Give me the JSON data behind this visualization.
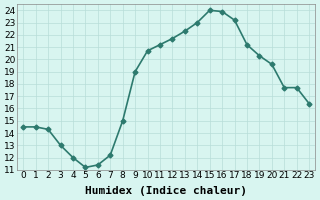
{
  "x": [
    0,
    1,
    2,
    3,
    4,
    5,
    6,
    7,
    8,
    9,
    10,
    11,
    12,
    13,
    14,
    15,
    16,
    17,
    18,
    19,
    20,
    21,
    22,
    23
  ],
  "y": [
    14.5,
    14.5,
    14.3,
    13.0,
    12.0,
    11.2,
    11.4,
    12.2,
    15.0,
    19.0,
    20.7,
    21.2,
    21.7,
    22.3,
    23.0,
    24.0,
    23.9,
    23.2,
    21.2,
    20.3,
    19.6,
    17.7,
    17.7,
    16.4
  ],
  "xlabel": "Humidex (Indice chaleur)",
  "xlim": [
    -0.5,
    23.5
  ],
  "ylim": [
    11,
    24.5
  ],
  "yticks": [
    11,
    12,
    13,
    14,
    15,
    16,
    17,
    18,
    19,
    20,
    21,
    22,
    23,
    24
  ],
  "xticks": [
    0,
    1,
    2,
    3,
    4,
    5,
    6,
    7,
    8,
    9,
    10,
    11,
    12,
    13,
    14,
    15,
    16,
    17,
    18,
    19,
    20,
    21,
    22,
    23
  ],
  "line_color": "#2d7a6e",
  "marker": "D",
  "marker_size": 2.5,
  "bg_color": "#d8f5f0",
  "grid_color": "#b8ddd8",
  "xlabel_fontsize": 8,
  "tick_fontsize": 6.5,
  "line_width": 1.2
}
